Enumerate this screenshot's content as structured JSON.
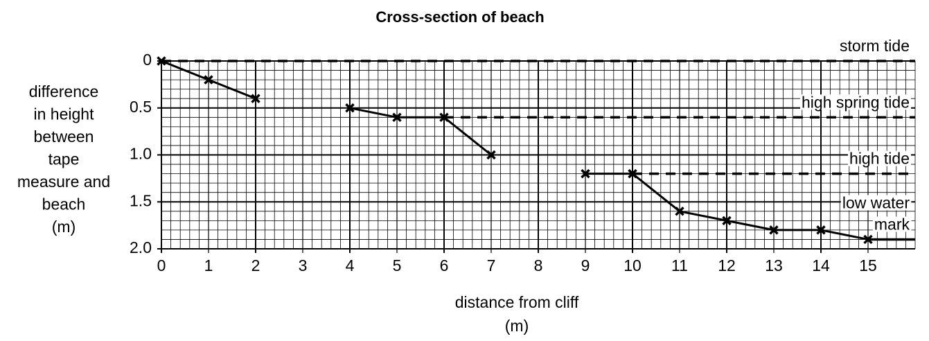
{
  "chart_data": {
    "type": "line",
    "title": "Cross-section of beach",
    "xlabel": [
      "distance from cliff",
      "(m)"
    ],
    "ylabel": [
      "difference",
      "in height",
      "between",
      "tape",
      "measure and",
      "beach",
      "(m)"
    ],
    "x": [
      0,
      1,
      2,
      3,
      4,
      5,
      6,
      7,
      8,
      9,
      10,
      11,
      12,
      13,
      14,
      15
    ],
    "series": [
      {
        "color": "#000000",
        "values": [
          0,
          0.2,
          0.4,
          null,
          0.5,
          0.6,
          0.6,
          1.0,
          null,
          1.2,
          1.2,
          1.6,
          1.7,
          1.8,
          1.8,
          1.9
        ]
      }
    ],
    "xlim": [
      0,
      16
    ],
    "ylim": [
      0,
      2
    ],
    "y_inverted": true,
    "xticks": [
      0,
      1,
      2,
      3,
      4,
      5,
      6,
      7,
      8,
      9,
      10,
      11,
      12,
      13,
      14,
      15
    ],
    "yticks": [
      0,
      0.5,
      {
        "value": 1,
        "label": "1.0"
      },
      1.5,
      {
        "value": 2,
        "label": "2.0"
      }
    ],
    "grid": true,
    "minor_step_x": 0.2,
    "minor_step_y": 0.1,
    "major_step_x": 2,
    "reference_lines": [
      {
        "label": [
          "storm tide"
        ],
        "value": 0,
        "from": 0,
        "style": "dashed"
      },
      {
        "label": [
          "high spring tide"
        ],
        "value": 0.6,
        "from": 6,
        "style": "dashed"
      },
      {
        "label": [
          "high tide"
        ],
        "value": 1.2,
        "from": 10,
        "style": "dashed"
      },
      {
        "label": [
          "low water",
          "mark"
        ],
        "value": 1.9,
        "from": 15,
        "style": "solid"
      }
    ]
  }
}
